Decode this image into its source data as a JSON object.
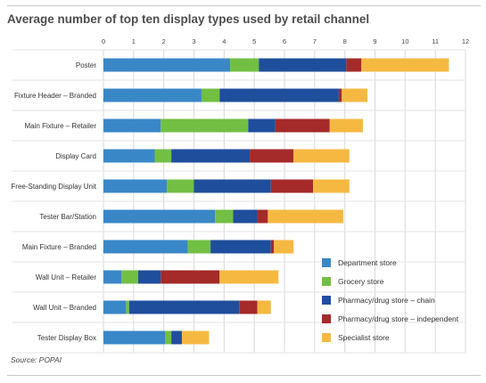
{
  "title": "Average number of top ten display types used by retail channel",
  "source": "Source: POPAI",
  "chart_data": {
    "type": "bar",
    "orientation": "horizontal",
    "stacked": true,
    "xlim": [
      0,
      12
    ],
    "xticks": [
      0,
      1,
      2,
      3,
      4,
      5,
      6,
      7,
      8,
      9,
      10,
      11,
      12
    ],
    "grid": true,
    "legend_position": "bottom-right",
    "categories": [
      "Poster",
      "Fixture Header – Branded",
      "Main Fixture – Retailer",
      "Display Card",
      "Free-Standing Display Unit",
      "Tester Bar/Station",
      "Main Fixture – Branded",
      "Wall Unit – Retailer",
      "Wall Unit – Branded",
      "Tester Display Box"
    ],
    "series": [
      {
        "name": "Department store",
        "color": "#3a87c8",
        "values": [
          4.2,
          3.25,
          1.9,
          1.7,
          2.1,
          3.7,
          2.8,
          0.6,
          0.75,
          2.05
        ]
      },
      {
        "name": "Grocery store",
        "color": "#72bf44",
        "values": [
          0.95,
          0.6,
          2.9,
          0.55,
          0.9,
          0.6,
          0.75,
          0.55,
          0.1,
          0.2
        ]
      },
      {
        "name": "Pharmacy/drug store – chain",
        "color": "#1f4e9c",
        "values": [
          2.9,
          3.95,
          0.9,
          2.6,
          2.55,
          0.8,
          2.0,
          0.75,
          3.65,
          0.35
        ]
      },
      {
        "name": "Pharmacy/drug store – independent",
        "color": "#a52a2a",
        "values": [
          0.5,
          0.1,
          1.8,
          1.45,
          1.4,
          0.35,
          0.1,
          1.95,
          0.6,
          0.0
        ]
      },
      {
        "name": "Specialist store",
        "color": "#f5b942",
        "values": [
          2.9,
          0.85,
          1.1,
          1.85,
          1.2,
          2.5,
          0.65,
          1.95,
          0.45,
          0.9
        ]
      }
    ]
  }
}
